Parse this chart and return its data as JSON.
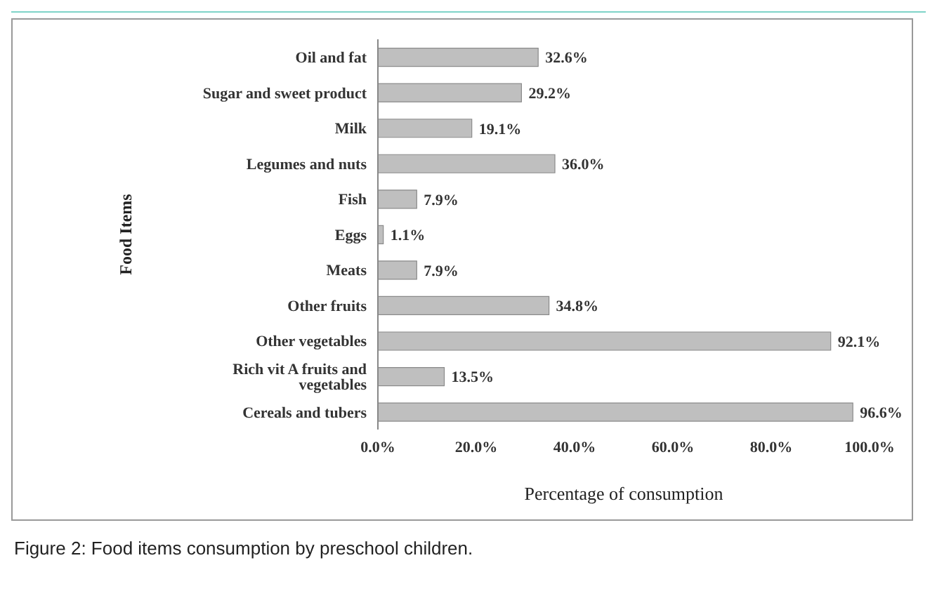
{
  "chart_data": {
    "type": "bar",
    "orientation": "horizontal",
    "xlabel": "Percentage of consumption",
    "ylabel": "Food Items",
    "categories": [
      "Oil and fat",
      "Sugar and sweet product",
      "Milk",
      "Legumes and nuts",
      "Fish",
      "Eggs",
      "Meats",
      "Other fruits",
      "Other vegetables",
      "Rich vit A fruits and vegetables",
      "Cereals and tubers"
    ],
    "values": [
      32.6,
      29.2,
      19.1,
      36.0,
      7.9,
      1.1,
      7.9,
      34.8,
      92.1,
      13.5,
      96.6
    ],
    "value_labels": [
      "32.6%",
      "29.2%",
      "19.1%",
      "36.0%",
      "7.9%",
      "1.1%",
      "7.9%",
      "34.8%",
      "92.1%",
      "13.5%",
      "96.6%"
    ],
    "color": "#bfbfbf",
    "xlim": [
      0,
      100
    ],
    "xticks": [
      {
        "value": 0,
        "label": "0.0%"
      },
      {
        "value": 20,
        "label": "20.0%"
      },
      {
        "value": 40,
        "label": "40.0%"
      },
      {
        "value": 60,
        "label": "60.0%"
      },
      {
        "value": 80,
        "label": "80.0%"
      },
      {
        "value": 100,
        "label": "100.0%"
      }
    ],
    "grid": false,
    "legend": false,
    "annotations": [
      "Figure 2: Food items consumption by preschool children."
    ]
  }
}
